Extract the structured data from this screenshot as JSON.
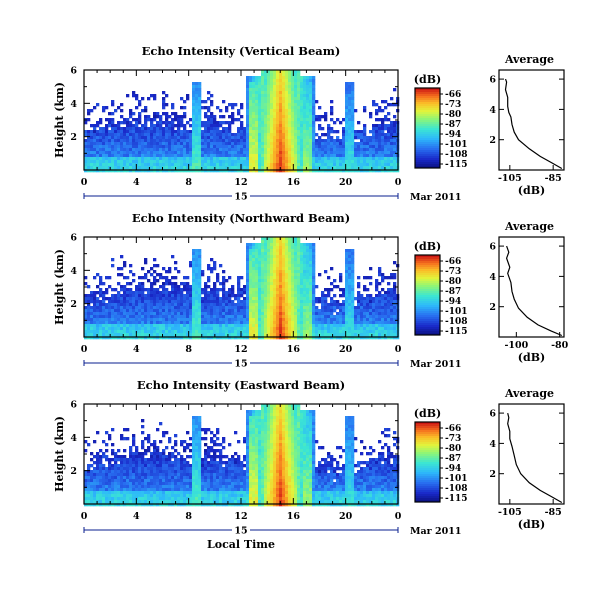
{
  "chart_data": [
    {
      "type": "heatmap",
      "title": "Echo Intensity (Vertical Beam)",
      "ylabel": "Height (km)",
      "yticks": [
        "2",
        "4",
        "6"
      ],
      "ylim": [
        0,
        6
      ],
      "xticks": [
        "0",
        "4",
        "8",
        "12",
        "16",
        "20",
        "0"
      ],
      "xlim": [
        0,
        24
      ],
      "date_label": "15",
      "date_suffix": "Mar 2011",
      "colorbar": {
        "unit": "(dB)",
        "levels": [
          "-66",
          "-73",
          "-80",
          "-87",
          "-94",
          "-101",
          "-108",
          "-115"
        ]
      },
      "average_profile": {
        "title": "Average",
        "xlabel": "(dB)",
        "xticks": [
          "-105",
          "-85"
        ],
        "xlim": [
          -110,
          -80
        ],
        "yticks": [
          "2",
          "4",
          "6"
        ],
        "points": [
          [
            -81,
            0.1
          ],
          [
            -86,
            0.5
          ],
          [
            -91,
            0.9
          ],
          [
            -96,
            1.4
          ],
          [
            -101,
            2.0
          ],
          [
            -103,
            2.5
          ],
          [
            -104,
            3.0
          ],
          [
            -104.5,
            3.5
          ],
          [
            -105.5,
            3.8
          ],
          [
            -106,
            4.2
          ],
          [
            -106,
            4.8
          ],
          [
            -107,
            5.3
          ],
          [
            -106.5,
            5.8
          ],
          [
            -107,
            6.0
          ]
        ]
      }
    },
    {
      "type": "heatmap",
      "title": "Echo Intensity (Northward Beam)",
      "ylabel": "Height (km)",
      "yticks": [
        "2",
        "4",
        "6"
      ],
      "ylim": [
        0,
        6
      ],
      "xticks": [
        "0",
        "4",
        "8",
        "12",
        "16",
        "20",
        "0"
      ],
      "xlim": [
        0,
        24
      ],
      "date_label": "15",
      "date_suffix": "Mar 2011",
      "colorbar": {
        "unit": "(dB)",
        "levels": [
          "-66",
          "-73",
          "-80",
          "-87",
          "-94",
          "-101",
          "-108",
          "-115"
        ]
      },
      "average_profile": {
        "title": "Average",
        "xlabel": "(dB)",
        "xticks": [
          "-100",
          "-80"
        ],
        "xlim": [
          -108,
          -78
        ],
        "yticks": [
          "2",
          "4",
          "6"
        ],
        "points": [
          [
            -79,
            0.1
          ],
          [
            -84,
            0.4
          ],
          [
            -90,
            0.8
          ],
          [
            -95,
            1.3
          ],
          [
            -99,
            1.9
          ],
          [
            -101,
            2.5
          ],
          [
            -102,
            3.0
          ],
          [
            -102.5,
            3.6
          ],
          [
            -104,
            4.2
          ],
          [
            -103,
            4.6
          ],
          [
            -104.5,
            5.2
          ],
          [
            -103.5,
            5.6
          ],
          [
            -104.5,
            6.0
          ]
        ]
      }
    },
    {
      "type": "heatmap",
      "title": "Echo Intensity (Eastward Beam)",
      "ylabel": "Height (km)",
      "yticks": [
        "2",
        "4",
        "6"
      ],
      "ylim": [
        0,
        6
      ],
      "xticks": [
        "0",
        "4",
        "8",
        "12",
        "16",
        "20",
        "0"
      ],
      "xlim": [
        0,
        24
      ],
      "date_label": "15",
      "date_suffix": "Mar 2011",
      "xlabel": "Local Time",
      "colorbar": {
        "unit": "(dB)",
        "levels": [
          "-66",
          "-73",
          "-80",
          "-87",
          "-94",
          "-101",
          "-108",
          "-115"
        ]
      },
      "average_profile": {
        "title": "Average",
        "xlabel": "(dB)",
        "xticks": [
          "-105",
          "-85"
        ],
        "xlim": [
          -110,
          -80
        ],
        "yticks": [
          "2",
          "4",
          "6"
        ],
        "points": [
          [
            -81,
            0.1
          ],
          [
            -86,
            0.5
          ],
          [
            -91,
            0.9
          ],
          [
            -96,
            1.4
          ],
          [
            -100,
            2.0
          ],
          [
            -102,
            2.6
          ],
          [
            -103,
            3.2
          ],
          [
            -104,
            3.8
          ],
          [
            -105,
            4.3
          ],
          [
            -105,
            4.8
          ],
          [
            -106,
            5.3
          ],
          [
            -105.5,
            5.7
          ],
          [
            -106,
            6.0
          ]
        ]
      }
    }
  ]
}
